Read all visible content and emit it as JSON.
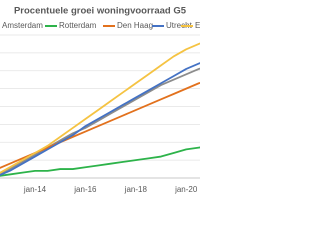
{
  "chart_data": {
    "type": "line",
    "title": "Procentuele groei woningvoorraad G5",
    "categories": [
      null,
      null,
      null,
      "jan-14",
      null,
      null,
      null,
      "jan-16",
      null,
      null,
      null,
      "jan-18",
      null,
      null,
      null,
      "jan-20",
      null,
      null
    ],
    "series": [
      {
        "name": "Amsterdam",
        "color": "#8c8c8c",
        "values": [
          0.2,
          0.5,
          0.9,
          1.3,
          1.7,
          2.1,
          2.5,
          2.8,
          3.2,
          3.6,
          4.0,
          4.4,
          4.8,
          5.2,
          5.5,
          5.8,
          6.1,
          6.3
        ]
      },
      {
        "name": "Rotterdam",
        "color": "#2db34a",
        "values": [
          0.1,
          0.2,
          0.3,
          0.4,
          0.4,
          0.5,
          0.5,
          0.6,
          0.7,
          0.8,
          0.9,
          1.0,
          1.1,
          1.2,
          1.4,
          1.6,
          1.7,
          1.8
        ]
      },
      {
        "name": "Den Haag",
        "color": "#e2711d",
        "values": [
          0.5,
          0.8,
          1.1,
          1.4,
          1.7,
          2.0,
          2.3,
          2.6,
          2.9,
          3.2,
          3.5,
          3.8,
          4.1,
          4.4,
          4.7,
          5.0,
          5.3,
          5.5
        ]
      },
      {
        "name": "Utrecht",
        "color": "#4472c4",
        "values": [
          0.1,
          0.4,
          0.8,
          1.2,
          1.6,
          2.0,
          2.4,
          2.9,
          3.3,
          3.7,
          4.1,
          4.5,
          4.9,
          5.3,
          5.7,
          6.1,
          6.4,
          6.7
        ]
      },
      {
        "name": "Eindhoven",
        "color": "#f5c342",
        "values": [
          0.2,
          0.6,
          1.0,
          1.4,
          1.8,
          2.3,
          2.8,
          3.3,
          3.8,
          4.3,
          4.8,
          5.3,
          5.8,
          6.3,
          6.8,
          7.2,
          7.5,
          7.8
        ]
      }
    ],
    "ylim": [
      0,
      8
    ],
    "yticks": [
      0,
      1,
      2,
      3,
      4,
      5,
      6,
      7,
      8
    ],
    "grid": true
  }
}
